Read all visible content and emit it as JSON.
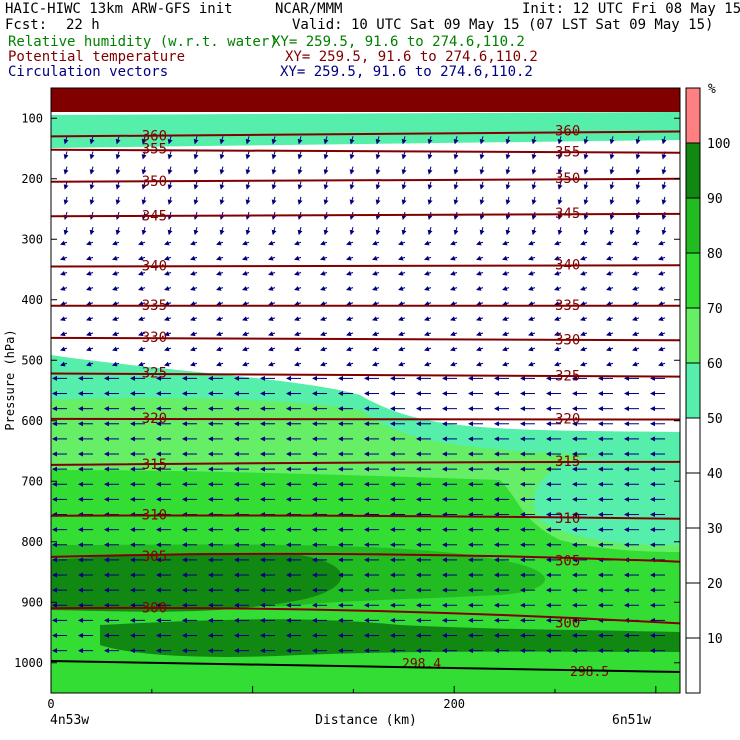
{
  "header": {
    "model": "HAIC-HIWC 13km ARW-GFS init",
    "org": "NCAR/MMM",
    "init": "Init: 12 UTC Fri 08 May 15",
    "fcst_label": "Fcst:",
    "fcst_value": "22 h",
    "valid": "Valid: 10 UTC Sat 09 May 15 (07 LST Sat 09 May 15)",
    "rh_label": "Relative humidity (w.r.t. water)",
    "rh_xy": "XY= 259.5, 91.6 to 274.6,110.2",
    "theta_label": "Potential temperature",
    "theta_xy": "XY= 259.5, 91.6 to 274.6,110.2",
    "vec_label": "Circulation vectors",
    "vec_xy": "XY= 259.5, 91.6 to 274.6,110.2"
  },
  "colors": {
    "theta_contour": "#800000",
    "vector": "#000080",
    "rh_50": "#55eeaa",
    "rh_60": "#66ee66",
    "rh_70": "#33dd33",
    "rh_80": "#22bb22",
    "rh_90": "#118811",
    "rh_100": "#ff8080",
    "top_band": "#800000"
  },
  "chart_data": {
    "type": "heatmap",
    "ylabel": "Pressure (hPa)",
    "xlabel": "Distance (km)",
    "x_ticks": [
      "0",
      "200"
    ],
    "y_ticks": [
      "100",
      "200",
      "300",
      "400",
      "500",
      "600",
      "700",
      "800",
      "900",
      "1000"
    ],
    "x_start_label": "4n53w",
    "x_end_label": "6n51w",
    "xlim": [
      0,
      312
    ],
    "ylim": [
      1050,
      50
    ],
    "colorbar": {
      "unit": "%",
      "tick_labels": [
        "10",
        "20",
        "30",
        "40",
        "50",
        "60",
        "70",
        "80",
        "90",
        "100"
      ],
      "levels": [
        {
          "from": 50,
          "to": 60,
          "color": "#55eeaa"
        },
        {
          "from": 60,
          "to": 70,
          "color": "#66ee66"
        },
        {
          "from": 70,
          "to": 80,
          "color": "#33dd33"
        },
        {
          "from": 80,
          "to": 90,
          "color": "#22bb22"
        },
        {
          "from": 90,
          "to": 100,
          "color": "#118811"
        },
        {
          "from": 100,
          "to": 110,
          "color": "#ff8080"
        }
      ]
    },
    "theta_contours": [
      {
        "label": "360",
        "p": [
          130,
          125,
          122
        ]
      },
      {
        "label": "355",
        "p": [
          152,
          155,
          157
        ]
      },
      {
        "label": "350",
        "p": [
          205,
          203,
          200
        ]
      },
      {
        "label": "345",
        "p": [
          262,
          260,
          258
        ]
      },
      {
        "label": "340",
        "p": [
          345,
          345,
          343
        ]
      },
      {
        "label": "335",
        "p": [
          410,
          410,
          410
        ]
      },
      {
        "label": "330",
        "p": [
          463,
          465,
          467
        ]
      },
      {
        "label": "325",
        "p": [
          522,
          525,
          527
        ]
      },
      {
        "label": "320",
        "p": [
          597,
          597,
          598
        ]
      },
      {
        "label": "315",
        "p": [
          673,
          668,
          668
        ]
      },
      {
        "label": "310",
        "p": [
          757,
          755,
          762
        ]
      },
      {
        "label": "305",
        "p": [
          825,
          812,
          833
        ]
      },
      {
        "label": "300",
        "p": [
          910,
          905,
          935
        ]
      },
      {
        "label": "298.4",
        "p": []
      },
      {
        "label": "298.5",
        "p": []
      }
    ]
  }
}
